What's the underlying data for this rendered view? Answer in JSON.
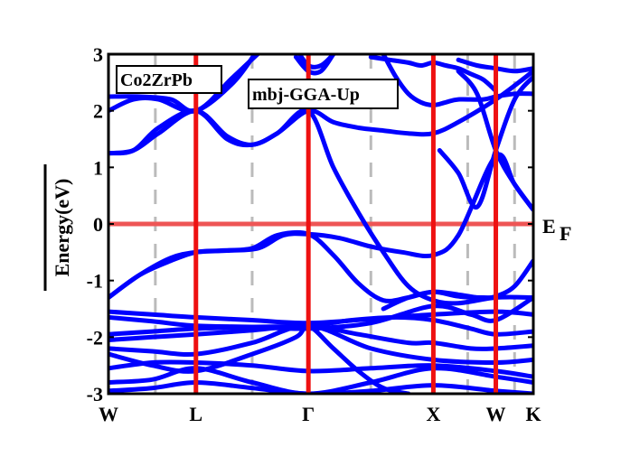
{
  "chart_data": {
    "type": "line",
    "title": "",
    "material_label": "Co2ZrPb",
    "method_label": "mbj-GGA-Up",
    "ylabel": "Energy(eV)",
    "xlabel": "",
    "ylim": [
      -3,
      3
    ],
    "yticks": [
      "-3",
      "-2",
      "-1",
      "0",
      "1",
      "2",
      "3"
    ],
    "fermi_label": "E",
    "fermi_subscript": "F",
    "fermi_level": 0,
    "x_range": [
      0,
      6.8
    ],
    "high_symmetry_points": [
      {
        "label": "W",
        "x": 0
      },
      {
        "label": "L",
        "x": 1.4
      },
      {
        "label": "Γ",
        "x": 3.2
      },
      {
        "label": "X",
        "x": 5.2
      },
      {
        "label": "W",
        "x": 6.2
      },
      {
        "label": "K",
        "x": 6.8
      }
    ],
    "dashed_guides_x": [
      0.75,
      2.3,
      4.2,
      5.75,
      6.5
    ],
    "colors": {
      "bands": "#0000ff",
      "symmetry_lines": "#ee1111",
      "fermi_line": "#ee5555",
      "guides": "#bbbbbb"
    },
    "series": [
      {
        "x": [
          0,
          0.5,
          1.0,
          1.4,
          1.9,
          2.4,
          2.8,
          3.2,
          3.7,
          4.2,
          4.7,
          5.2,
          5.6,
          6.2,
          6.5,
          6.8
        ],
        "y": [
          -1.3,
          -0.9,
          -0.6,
          -0.5,
          -0.47,
          -0.43,
          -0.2,
          -0.18,
          -0.25,
          -0.4,
          -0.5,
          -0.55,
          -0.2,
          1.2,
          0.7,
          0.25
        ]
      },
      {
        "x": [
          0,
          0.5,
          1.0,
          1.4,
          1.8,
          2.3,
          2.7,
          3.2,
          3.6,
          4.0,
          4.4,
          4.8,
          5.2,
          5.6,
          6.0,
          6.2,
          6.5,
          6.8
        ],
        "y": [
          -1.3,
          -0.9,
          -0.65,
          -0.5,
          -0.47,
          -0.43,
          -0.2,
          -0.18,
          -0.55,
          -1.05,
          -1.35,
          -1.3,
          -1.2,
          -1.28,
          -1.3,
          -1.28,
          -1.1,
          -0.65
        ]
      },
      {
        "x": [
          0,
          0.7,
          1.4,
          2.3,
          3.2,
          4.2,
          5.2,
          6.2,
          6.8
        ],
        "y": [
          -1.55,
          -1.6,
          -1.65,
          -1.7,
          -1.75,
          -1.68,
          -1.6,
          -1.55,
          -1.6
        ]
      },
      {
        "x": [
          0,
          0.7,
          1.4,
          2.3,
          3.2,
          4.2,
          5.2,
          5.8,
          6.2,
          6.8
        ],
        "y": [
          -1.65,
          -1.72,
          -1.8,
          -1.82,
          -1.85,
          -1.75,
          -1.45,
          -1.6,
          -1.7,
          -1.3
        ]
      },
      {
        "x": [
          0,
          0.7,
          1.4,
          2.3,
          3.2,
          3.9,
          4.6,
          5.2,
          5.8,
          6.2,
          6.8
        ],
        "y": [
          -1.95,
          -1.9,
          -1.85,
          -1.82,
          -1.8,
          -1.7,
          -1.65,
          -1.7,
          -1.85,
          -1.95,
          -1.9
        ]
      },
      {
        "x": [
          0,
          0.7,
          1.4,
          2.3,
          3.2,
          4.0,
          4.8,
          5.2,
          5.8,
          6.2,
          6.8
        ],
        "y": [
          -2.05,
          -2.0,
          -1.95,
          -1.88,
          -1.8,
          -1.95,
          -2.1,
          -2.1,
          -2.2,
          -2.2,
          -2.15
        ]
      },
      {
        "x": [
          0,
          0.7,
          1.4,
          2.3,
          3.2,
          4.2,
          5.2,
          6.2,
          6.8
        ],
        "y": [
          -2.2,
          -2.25,
          -2.3,
          -2.1,
          -1.8,
          -2.2,
          -2.4,
          -2.45,
          -2.4
        ]
      },
      {
        "x": [
          0,
          0.7,
          1.4,
          2.3,
          3.2,
          4.2,
          5.2,
          6.2,
          6.8
        ],
        "y": [
          -2.55,
          -2.45,
          -2.45,
          -2.5,
          -2.6,
          -2.55,
          -2.5,
          -2.6,
          -2.7
        ]
      },
      {
        "x": [
          0,
          0.7,
          1.4,
          2.3,
          3.2,
          4.2,
          5.2,
          6.2,
          6.8
        ],
        "y": [
          -2.8,
          -2.75,
          -2.55,
          -2.8,
          -3.0,
          -2.8,
          -2.55,
          -2.7,
          -2.8
        ]
      },
      {
        "x": [
          0,
          0.7,
          1.4,
          2.3,
          3.0,
          3.2,
          3.6,
          4.0,
          4.4,
          4.8
        ],
        "y": [
          -2.3,
          -2.5,
          -2.6,
          -2.3,
          -2.0,
          -1.8,
          -2.2,
          -2.6,
          -2.9,
          -3.0
        ]
      },
      {
        "x": [
          0,
          0.7,
          1.4,
          2.3,
          3.2,
          4.2,
          5.2,
          6.2,
          6.8
        ],
        "y": [
          -2.95,
          -2.9,
          -2.8,
          -2.9,
          -3.0,
          -2.95,
          -2.85,
          -2.95,
          -3.0
        ]
      },
      {
        "x": [
          0,
          0.4,
          0.8,
          1.4,
          1.9,
          2.3,
          2.7,
          3.2,
          3.6,
          4.0,
          4.4,
          4.8,
          5.2,
          5.6,
          6.2,
          6.8
        ],
        "y": [
          1.25,
          1.3,
          1.6,
          2.0,
          1.55,
          1.4,
          1.6,
          2.0,
          1.0,
          0.2,
          -0.5,
          -1.1,
          -1.35,
          -1.4,
          -1.3,
          -1.3
        ]
      },
      {
        "x": [
          0,
          0.4,
          0.8,
          1.4,
          1.9,
          2.3,
          2.7,
          3.2,
          3.6,
          4.0,
          4.4,
          4.8,
          5.2,
          5.6,
          6.2,
          6.8
        ],
        "y": [
          1.25,
          1.3,
          1.7,
          2.0,
          1.5,
          1.4,
          1.6,
          2.0,
          1.8,
          1.7,
          1.65,
          1.6,
          1.6,
          1.8,
          2.2,
          2.7
        ]
      },
      {
        "x": [
          0,
          0.4,
          0.8,
          1.4,
          2.0,
          2.6,
          3.0
        ],
        "y": [
          2.0,
          2.2,
          2.2,
          2.0,
          2.6,
          3.2,
          3.4
        ]
      },
      {
        "x": [
          0,
          0.5,
          1.0,
          1.4,
          2.0,
          2.4
        ],
        "y": [
          2.25,
          2.25,
          2.2,
          2.0,
          2.5,
          3.1
        ]
      },
      {
        "x": [
          3.0,
          3.2,
          3.4,
          3.6,
          3.8
        ],
        "y": [
          3.1,
          2.8,
          2.8,
          3.0,
          3.3
        ]
      },
      {
        "x": [
          3.0,
          3.2,
          3.4,
          3.6
        ],
        "y": [
          2.95,
          2.7,
          2.7,
          3.0
        ]
      },
      {
        "x": [
          4.4,
          4.6,
          4.8,
          5.0,
          5.2,
          5.4,
          5.6,
          6.0,
          6.2,
          6.5,
          6.8
        ],
        "y": [
          3.0,
          2.6,
          2.3,
          2.15,
          2.1,
          2.15,
          2.2,
          2.2,
          2.25,
          2.3,
          2.3
        ]
      },
      {
        "x": [
          4.2,
          4.5,
          4.8,
          5.0,
          5.2,
          5.4,
          5.6,
          5.8,
          6.0,
          6.2
        ],
        "y": [
          2.95,
          2.9,
          2.85,
          2.8,
          2.85,
          2.8,
          2.75,
          2.65,
          2.55,
          2.35
        ]
      },
      {
        "x": [
          5.3,
          5.6,
          5.9,
          6.2,
          6.5,
          6.8
        ],
        "y": [
          1.3,
          0.9,
          0.3,
          1.3,
          2.2,
          2.6
        ]
      },
      {
        "x": [
          5.6,
          5.9,
          6.2,
          6.5,
          6.8
        ],
        "y": [
          2.7,
          2.3,
          1.3,
          0.7,
          0.25
        ]
      },
      {
        "x": [
          5.6,
          5.9,
          6.2,
          6.5,
          6.8
        ],
        "y": [
          2.9,
          2.8,
          2.75,
          2.7,
          2.75
        ]
      },
      {
        "x": [
          4.4,
          4.8,
          5.2,
          5.6,
          6.0
        ],
        "y": [
          -1.5,
          -1.3,
          -1.2,
          -1.25,
          -1.32
        ]
      }
    ]
  }
}
